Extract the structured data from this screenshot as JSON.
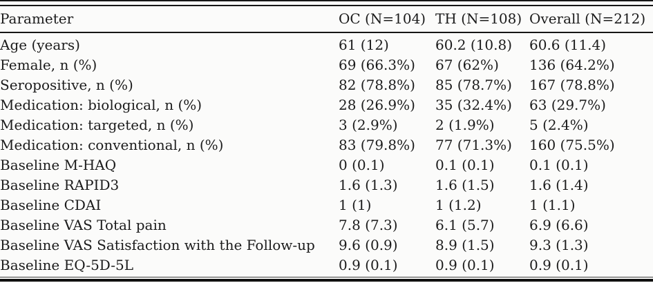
{
  "page": {
    "background": "#fbfbfa",
    "text_color": "#1b1b1b",
    "rule_color": "#161616"
  },
  "table": {
    "headers": [
      "Parameter",
      "OC (N=104)",
      "TH (N=108)",
      "Overall (N=212)"
    ],
    "rows": [
      [
        "Age (years)",
        "61 (12)",
        "60.2 (10.8)",
        "60.6 (11.4)"
      ],
      [
        "Female, n (%)",
        "69 (66.3%)",
        "67 (62%)",
        "136 (64.2%)"
      ],
      [
        "Seropositive, n (%)",
        "82 (78.8%)",
        "85 (78.7%)",
        "167 (78.8%)"
      ],
      [
        "Medication: biological, n (%)",
        "28 (26.9%)",
        "35 (32.4%)",
        "63 (29.7%)"
      ],
      [
        "Medication: targeted, n (%)",
        "3 (2.9%)",
        "2 (1.9%)",
        "5 (2.4%)"
      ],
      [
        "Medication: conventional, n (%)",
        "83 (79.8%)",
        "77 (71.3%)",
        "160 (75.5%)"
      ],
      [
        "Baseline M-HAQ",
        "0 (0.1)",
        "0.1 (0.1)",
        "0.1 (0.1)"
      ],
      [
        "Baseline RAPID3",
        "1.6 (1.3)",
        "1.6 (1.5)",
        "1.6 (1.4)"
      ],
      [
        "Baseline CDAI",
        "1 (1)",
        "1 (1.2)",
        "1 (1.1)"
      ],
      [
        "Baseline VAS Total pain",
        "7.8 (7.3)",
        "6.1 (5.7)",
        "6.9 (6.6)"
      ],
      [
        "Baseline VAS Satisfaction with the Follow-up",
        "9.6 (0.9)",
        "8.9 (1.5)",
        "9.3 (1.3)"
      ],
      [
        "Baseline EQ-5D-5L",
        "0.9 (0.1)",
        "0.9 (0.1)",
        "0.9 (0.1)"
      ]
    ]
  }
}
